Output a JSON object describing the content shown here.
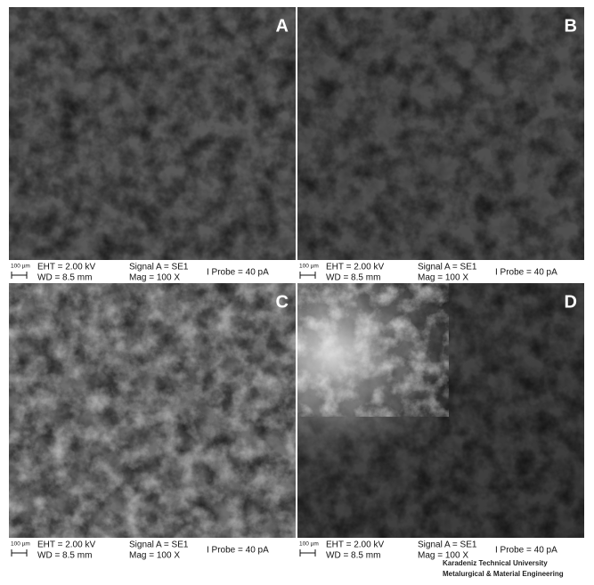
{
  "panels": [
    {
      "label": "A",
      "scale": "100 µm",
      "eht": "EHT = 2.00 kV",
      "wd": "WD = 8.5 mm",
      "signal": "Signal A = SE1",
      "mag": "Mag = 100 X",
      "probe": "I Probe = 40 pA"
    },
    {
      "label": "B",
      "scale": "100 µm",
      "eht": "EHT = 2.00 kV",
      "wd": "WD = 8.5 mm",
      "signal": "Signal A = SE1",
      "mag": "Mag = 100 X",
      "probe": "I Probe = 40 pA"
    },
    {
      "label": "C",
      "scale": "100 µm",
      "eht": "EHT = 2.00 kV",
      "wd": "WD = 8.5 mm",
      "signal": "Signal A = SE1",
      "mag": "Mag = 100 X",
      "probe": "I Probe = 40 pA"
    },
    {
      "label": "D",
      "scale": "100 µm",
      "eht": "EHT = 2.00 kV",
      "wd": "WD = 8.5 mm",
      "signal": "Signal A = SE1",
      "mag": "Mag = 100 X",
      "probe": "I Probe = 40 pA"
    }
  ],
  "footer": {
    "line1": "Karadeniz Technical University",
    "line2": "Metalurgical & Material Engineering"
  }
}
